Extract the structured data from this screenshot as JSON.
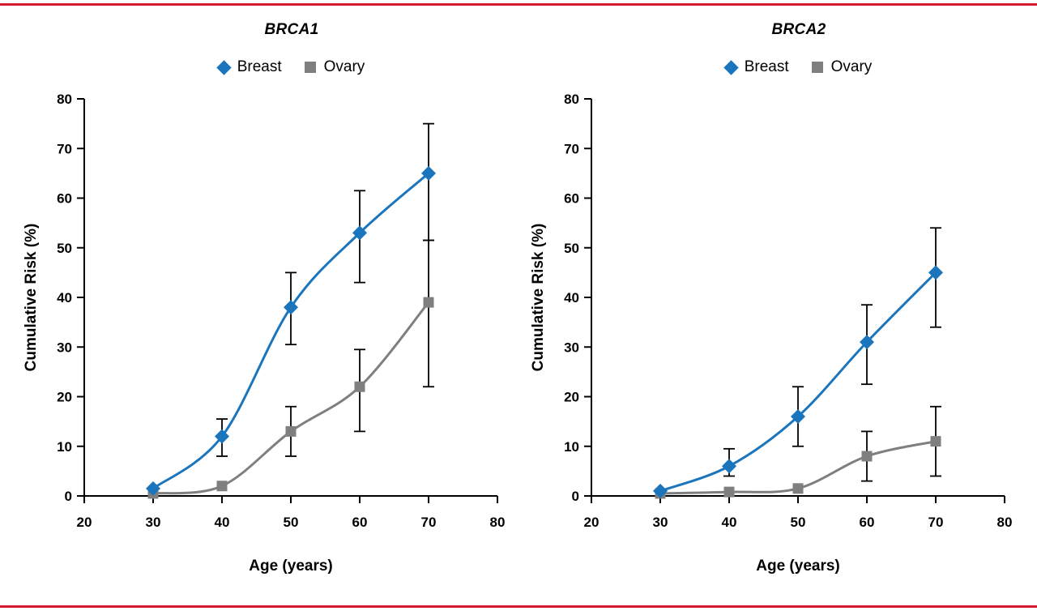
{
  "page": {
    "rule_color": "#d8182f"
  },
  "chart_data": [
    {
      "type": "line",
      "title": "BRCA1",
      "xlabel": "Age (years)",
      "ylabel": "Cumulative Risk (%)",
      "xlim": [
        20,
        80
      ],
      "ylim": [
        0,
        80
      ],
      "xticks": [
        20,
        30,
        40,
        50,
        60,
        70,
        80
      ],
      "yticks": [
        0,
        10,
        20,
        30,
        40,
        50,
        60,
        70,
        80
      ],
      "grid": false,
      "legend_position": "top",
      "series": [
        {
          "name": "Breast",
          "marker": "diamond",
          "color": "#1b75bc",
          "x": [
            30,
            40,
            50,
            60,
            70
          ],
          "y": [
            1.5,
            12,
            38,
            53,
            65
          ],
          "err_lo": [
            null,
            8,
            30.5,
            43,
            51.5
          ],
          "err_hi": [
            null,
            15.5,
            45,
            61.5,
            75
          ]
        },
        {
          "name": "Ovary",
          "marker": "square",
          "color": "#7f7f7f",
          "x": [
            30,
            40,
            50,
            60,
            70
          ],
          "y": [
            0.5,
            2,
            13,
            22,
            39
          ],
          "err_lo": [
            null,
            null,
            8,
            13,
            22
          ],
          "err_hi": [
            null,
            null,
            18,
            29.5,
            51.5
          ]
        }
      ]
    },
    {
      "type": "line",
      "title": "BRCA2",
      "xlabel": "Age (years)",
      "ylabel": "Cumulative Risk (%)",
      "xlim": [
        20,
        80
      ],
      "ylim": [
        0,
        80
      ],
      "xticks": [
        20,
        30,
        40,
        50,
        60,
        70,
        80
      ],
      "yticks": [
        0,
        10,
        20,
        30,
        40,
        50,
        60,
        70,
        80
      ],
      "grid": false,
      "legend_position": "top",
      "series": [
        {
          "name": "Breast",
          "marker": "diamond",
          "color": "#1b75bc",
          "x": [
            30,
            40,
            50,
            60,
            70
          ],
          "y": [
            1,
            6,
            16,
            31,
            45
          ],
          "err_lo": [
            null,
            4,
            10,
            22.5,
            34
          ],
          "err_hi": [
            null,
            9.5,
            22,
            38.5,
            54
          ]
        },
        {
          "name": "Ovary",
          "marker": "square",
          "color": "#7f7f7f",
          "x": [
            30,
            40,
            50,
            60,
            70
          ],
          "y": [
            0.5,
            0.8,
            1.5,
            8,
            11
          ],
          "err_lo": [
            null,
            null,
            null,
            3,
            4
          ],
          "err_hi": [
            null,
            null,
            null,
            13,
            18
          ]
        }
      ]
    }
  ]
}
